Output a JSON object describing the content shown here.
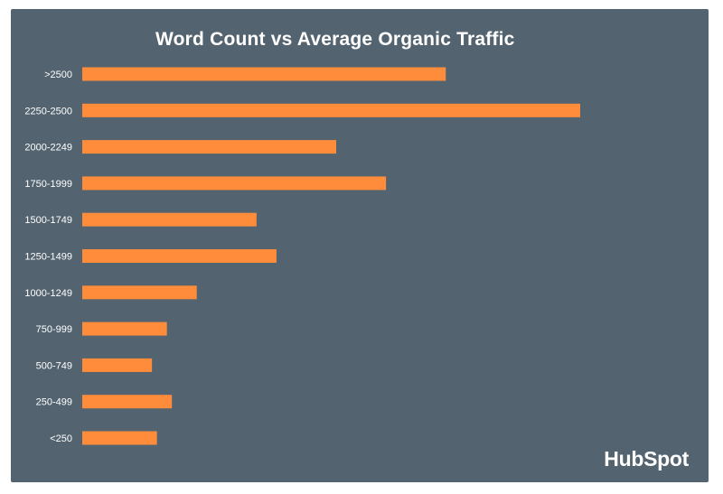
{
  "chart_data": {
    "type": "bar",
    "orientation": "horizontal",
    "title": "Word Count vs Average Organic Traffic",
    "categories": [
      ">2500",
      "2250-2500",
      "2000-2249",
      "1750-1999",
      "1500-1749",
      "1250-1499",
      "1000-1249",
      "750-999",
      "500-749",
      "250-499",
      "<250"
    ],
    "values": [
      73,
      100,
      51,
      61,
      35,
      39,
      23,
      17,
      14,
      18,
      15
    ],
    "xlim": [
      0,
      100
    ],
    "grid": false,
    "legend": "none",
    "colors": {
      "bar": "#FF8C3A",
      "background": "#536470",
      "text": "#FFFFFF"
    }
  },
  "branding": {
    "logo_text": "HubSpot"
  }
}
